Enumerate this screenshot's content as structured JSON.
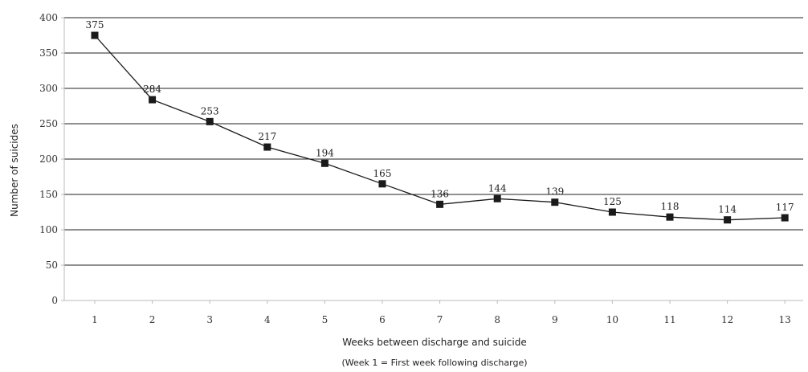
{
  "chart_data": {
    "type": "line",
    "xlabel": "Weeks between discharge and suicide",
    "xlabel_sub": "(Week 1 = First week following discharge)",
    "ylabel": "Number of suicides",
    "ylim": [
      0,
      400
    ],
    "yticks": [
      0,
      50,
      100,
      150,
      200,
      250,
      300,
      350,
      400
    ],
    "grid": true,
    "legend": "none",
    "categories": [
      "1",
      "2",
      "3",
      "4",
      "5",
      "6",
      "7",
      "8",
      "9",
      "10",
      "11",
      "12",
      "13"
    ],
    "series": [
      {
        "values": [
          375,
          284,
          253,
          217,
          194,
          165,
          136,
          144,
          139,
          125,
          118,
          114,
          117
        ],
        "labels": [
          "375",
          "284",
          "253",
          "217",
          "194",
          "165",
          "136",
          "144",
          "139",
          "125",
          "118",
          "114",
          "117"
        ]
      }
    ],
    "colors": {
      "line": "#1a1a1a",
      "grid": "#222222",
      "axis": "#bbbbbb"
    }
  }
}
